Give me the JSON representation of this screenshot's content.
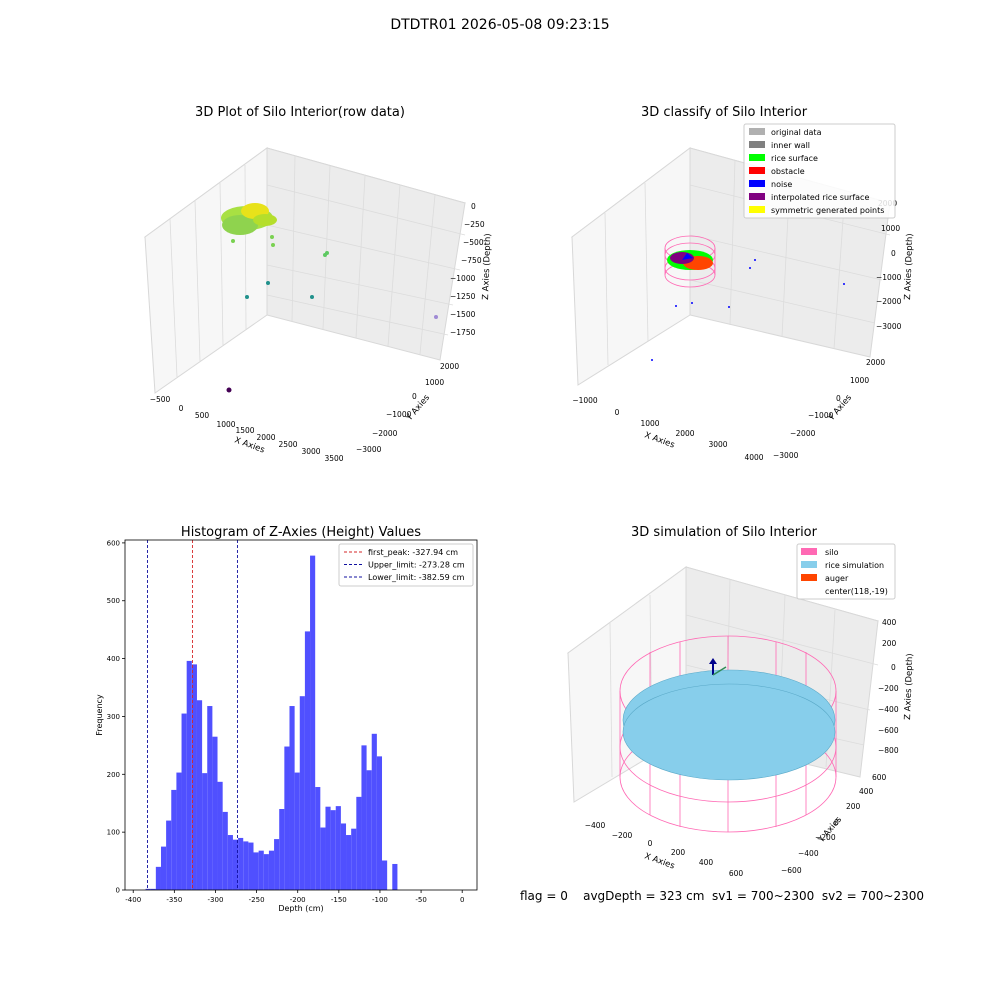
{
  "suptitle": "DTDTR01 2026-05-08 09:23:15",
  "footer": "flag = 0    avgDepth = 323 cm  sv1 = 700~2300  sv2 = 700~2300",
  "colors": {
    "histogram_bar": "#5050ff",
    "peak_line": "#d62728",
    "limit_line": "#1010a0",
    "original_data": "#b0b0b0",
    "inner_wall": "#808080",
    "rice_surface": "#00ff00",
    "obstacle": "#ff0000",
    "noise": "#0000ff",
    "interpolated_rice_surface": "#800080",
    "symmetric_generated_points": "#ffff00",
    "silo": "#ff69b4",
    "rice_simulation": "#87ceeb",
    "auger": "#ff4500"
  },
  "panels": {
    "raw": {
      "title": "3D Plot of Silo Interior(row data)",
      "xlabel": "X Axies",
      "ylabel": "Y Axies",
      "zlabel": "Z Axies (Depth)",
      "xticks": [
        "−500",
        "0",
        "500",
        "1000",
        "1500",
        "2000",
        "2500",
        "3000",
        "3500"
      ],
      "yticks": [
        "2000",
        "1000",
        "0",
        "−1000",
        "−2000",
        "−3000"
      ],
      "zticks": [
        "0",
        "−250",
        "−500",
        "−750",
        "−1000",
        "−1250",
        "−1500",
        "−1750"
      ]
    },
    "classify": {
      "title": "3D classify of Silo Interior",
      "xlabel": "X Axies",
      "ylabel": "Y Axies",
      "zlabel": "Z Axies (Depth)",
      "xticks": [
        "−1000",
        "0",
        "1000",
        "2000",
        "3000",
        "4000"
      ],
      "yticks": [
        "2000",
        "1000",
        "0",
        "−1000",
        "−2000",
        "−3000"
      ],
      "zticks": [
        "2000",
        "1000",
        "0",
        "−1000",
        "−2000",
        "−3000"
      ],
      "legend": [
        "original data",
        "inner wall",
        "rice surface",
        "obstacle",
        "noise",
        "interpolated rice surface",
        "symmetric generated points"
      ]
    },
    "simulation": {
      "title": "3D simulation of Silo Interior",
      "xlabel": "X Axies",
      "ylabel": "Y Axies",
      "zlabel": "Z Axies (Depth)",
      "xticks": [
        "−400",
        "−200",
        "0",
        "200",
        "400",
        "600"
      ],
      "yticks": [
        "600",
        "400",
        "200",
        "0",
        "−200",
        "−400",
        "−600"
      ],
      "zticks": [
        "400",
        "200",
        "0",
        "−200",
        "−400",
        "−600",
        "−800"
      ],
      "legend": [
        "silo",
        "rice simulation",
        "auger",
        "center(118,-19)"
      ]
    }
  },
  "chart_data": [
    {
      "type": "histogram",
      "title": "Histogram of Z-Axies (Height) Values",
      "xlabel": "Depth (cm)",
      "ylabel": "Frequency",
      "xlim": [
        -410,
        18
      ],
      "ylim": [
        0,
        605
      ],
      "xticks": [
        -400,
        -350,
        -300,
        -250,
        -200,
        -150,
        -100,
        -50,
        0
      ],
      "yticks": [
        0,
        100,
        200,
        300,
        400,
        500,
        600
      ],
      "bin_start": -385,
      "bin_width": 6.25,
      "values": [
        2,
        2,
        40,
        75,
        120,
        173,
        203,
        305,
        396,
        390,
        328,
        202,
        318,
        265,
        187,
        135,
        95,
        87,
        90,
        84,
        82,
        65,
        68,
        62,
        68,
        88,
        140,
        248,
        318,
        203,
        335,
        447,
        578,
        178,
        108,
        144,
        138,
        145,
        115,
        95,
        106,
        161,
        250,
        207,
        270,
        231,
        51,
        0,
        45
      ],
      "lines": [
        {
          "label": "first_peak: -327.94 cm",
          "x": -327.94,
          "color": "#d62728"
        },
        {
          "label": "Upper_limit: -273.28 cm",
          "x": -273.28,
          "color": "#1010a0"
        },
        {
          "label": "Lower_limit: -382.59 cm",
          "x": -382.59,
          "color": "#1010a0"
        }
      ],
      "legend_position": "top-right"
    }
  ]
}
